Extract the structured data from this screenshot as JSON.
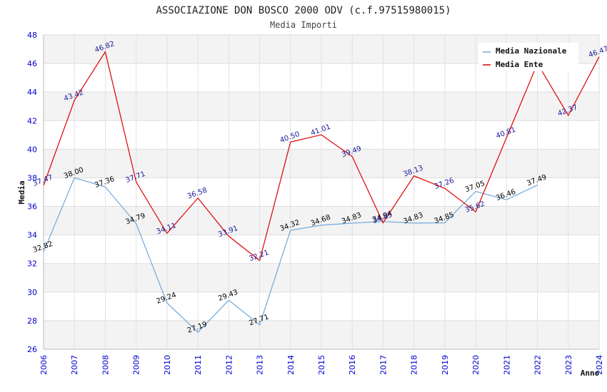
{
  "chart_data": {
    "type": "line",
    "title": "ASSOCIAZIONE DON BOSCO 2000 ODV (c.f.97515980015)",
    "subtitle": "Media Importi",
    "xlabel": "Anno",
    "ylabel": "Media",
    "ylim": [
      26,
      48
    ],
    "yticks": [
      26,
      28,
      30,
      32,
      34,
      36,
      38,
      40,
      42,
      44,
      46,
      48
    ],
    "x": [
      "2006",
      "2007",
      "2008",
      "2009",
      "2010",
      "2011",
      "2012",
      "2013",
      "2014",
      "2015",
      "2016",
      "2017",
      "2018",
      "2019",
      "2020",
      "2021",
      "2022",
      "2023",
      "2024"
    ],
    "grid": true,
    "legend_position": "top-right",
    "series": [
      {
        "name": "Media Nazionale",
        "color": "#6fa8dc",
        "label_color": "#000000",
        "values": [
          32.82,
          38.0,
          37.36,
          34.79,
          29.24,
          27.19,
          29.43,
          27.71,
          34.32,
          34.68,
          34.83,
          34.94,
          34.83,
          34.85,
          37.05,
          36.46,
          37.49,
          null,
          null
        ],
        "labels": [
          "32.82",
          "38.00",
          "37.36",
          "34.79",
          "29.24",
          "27.19",
          "29.43",
          "27.71",
          "34.32",
          "34.68",
          "34.83",
          "34.94",
          "34.83",
          "34.85",
          "37.05",
          "36.46",
          "37.49",
          "",
          ""
        ]
      },
      {
        "name": "Media Ente",
        "color": "#dd0000",
        "label_color": "#1a1a99",
        "values": [
          37.47,
          43.42,
          46.82,
          37.71,
          34.11,
          36.58,
          33.91,
          32.21,
          40.5,
          41.01,
          39.49,
          34.85,
          38.13,
          37.26,
          35.62,
          40.81,
          46.0,
          42.37,
          46.47
        ],
        "labels": [
          "37.47",
          "43.42",
          "46.82",
          "37.71",
          "34.11",
          "36.58",
          "33.91",
          "32.21",
          "40.50",
          "41.01",
          "39.49",
          "34.85",
          "38.13",
          "37.26",
          "35.62",
          "40.81",
          "",
          "42.37",
          "46.47"
        ]
      }
    ]
  }
}
